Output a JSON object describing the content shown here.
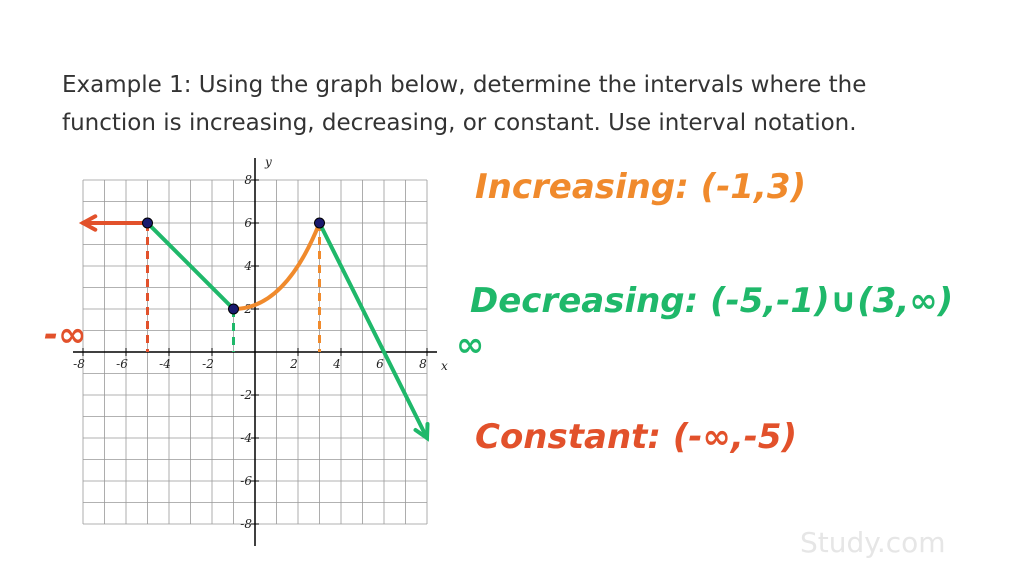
{
  "prompt": {
    "lines": [
      "Example 1:  Using the graph below, determine the intervals where the",
      "function is increasing, decreasing, or constant.  Use interval notation."
    ]
  },
  "graph": {
    "x_label": "x",
    "y_label": "y",
    "xlim": [
      -8,
      8
    ],
    "ylim": [
      -8,
      8
    ],
    "xticks": [
      -8,
      -6,
      -4,
      -2,
      2,
      4,
      6,
      8
    ],
    "yticks": [
      -8,
      -6,
      -4,
      -2,
      2,
      4,
      6,
      8
    ],
    "curve": {
      "x": [
        -8,
        -5,
        -1,
        3,
        8
      ],
      "y": [
        6,
        6,
        2,
        6,
        -4
      ]
    }
  },
  "annotations": {
    "increasing": "Increasing: (-1,3)",
    "decreasing": "Decreasing: (-5,-1)∪(3,∞)",
    "constant": "Constant: (-∞,-5)",
    "neg_infinity": "-∞",
    "pos_infinity": "∞"
  },
  "watermark": "Study.com"
}
